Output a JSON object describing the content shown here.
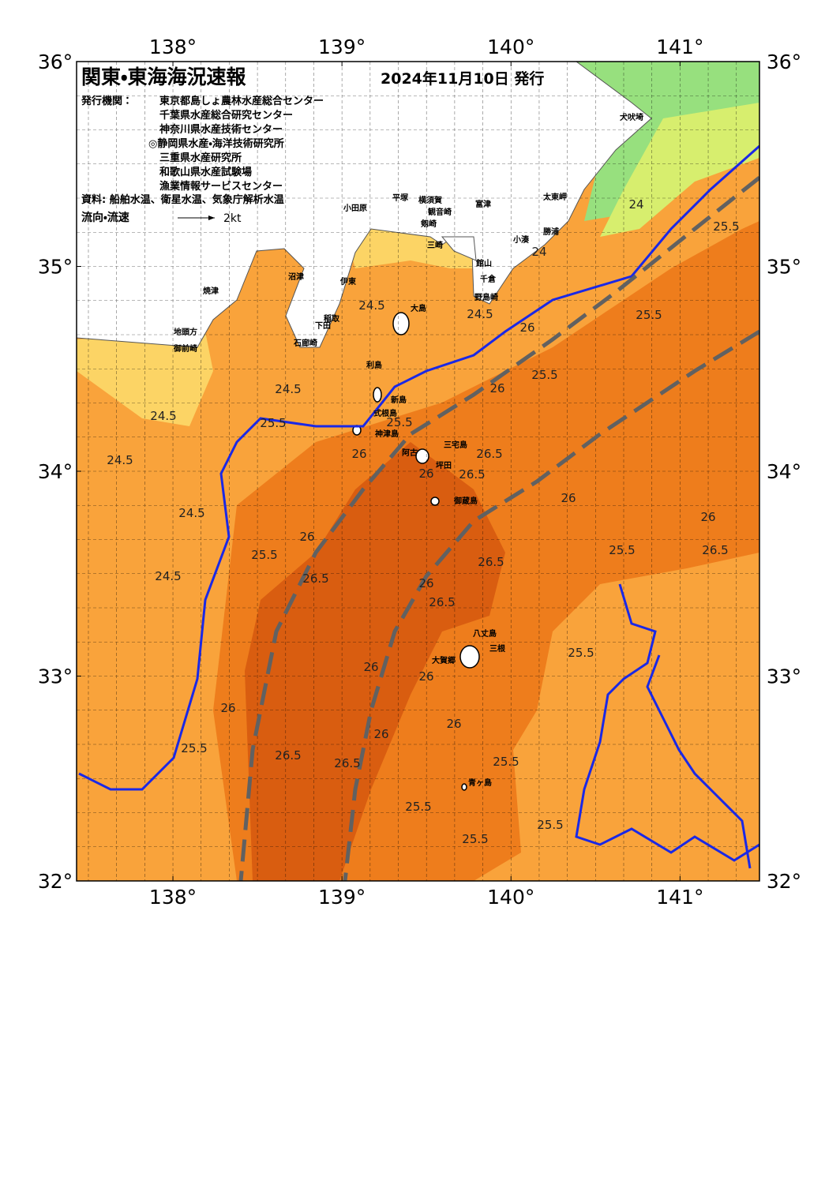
{
  "header": {
    "title": "関東・東海海況速報",
    "date": "2024年11月10日 発行"
  },
  "agencies_label": "発行機関：",
  "agencies": [
    "東京都島しょ農林水産総合センター",
    "千葉県水産総合研究センター",
    "神奈川県水産技術センター",
    "◎静岡県水産・海洋技術研究所",
    "三重県水産研究所",
    "和歌山県水産試験場",
    "漁業情報サービスセンター"
  ],
  "source": "資料: 船舶水温、衛星水温、気象庁解析水温",
  "legend": {
    "label": "流向・流速",
    "scale": "2kt"
  },
  "axes": {
    "xlim": [
      137.43,
      141.47
    ],
    "ylim": [
      32,
      36
    ],
    "lon_ticks": [
      {
        "value": 138,
        "label": "138°"
      },
      {
        "value": 139,
        "label": "139°"
      },
      {
        "value": 140,
        "label": "140°"
      },
      {
        "value": 141,
        "label": "141°"
      }
    ],
    "lat_ticks": [
      {
        "value": 32,
        "label": "32°"
      },
      {
        "value": 33,
        "label": "33°"
      },
      {
        "value": 34,
        "label": "34°"
      },
      {
        "value": 35,
        "label": "35°"
      },
      {
        "value": 36,
        "label": "36°"
      }
    ]
  },
  "place_names": [
    "犬吠埼",
    "太東岬",
    "勝浦",
    "小湊",
    "館山",
    "千倉",
    "野島崎",
    "富津",
    "観音崎",
    "剱崎",
    "三崎",
    "小田原",
    "平塚",
    "横須賀",
    "伊東",
    "沼津",
    "焼津",
    "御前崎",
    "地頭方",
    "稲取",
    "下田",
    "石廊崎",
    "大島",
    "利島",
    "新島",
    "式根島",
    "神津島",
    "三宅島",
    "阿古",
    "坪田",
    "御蔵島",
    "八丈島",
    "三根",
    "大賀郷",
    "青ヶ島"
  ],
  "contour_labels": [
    24,
    24,
    24.5,
    25.5,
    25.5,
    25.5,
    26,
    24.5,
    24.5,
    24.5,
    24.5,
    24.5,
    24.5,
    25.5,
    25.5,
    26,
    26,
    26,
    26,
    26.5,
    26.5,
    26.5,
    26,
    26.5,
    26.5,
    25.5,
    26,
    25.5,
    26,
    26.5,
    26,
    26,
    25.5,
    25.5,
    25.5,
    26.5,
    26,
    26.5,
    25.5,
    25.5,
    26,
    26,
    25.5
  ]
}
